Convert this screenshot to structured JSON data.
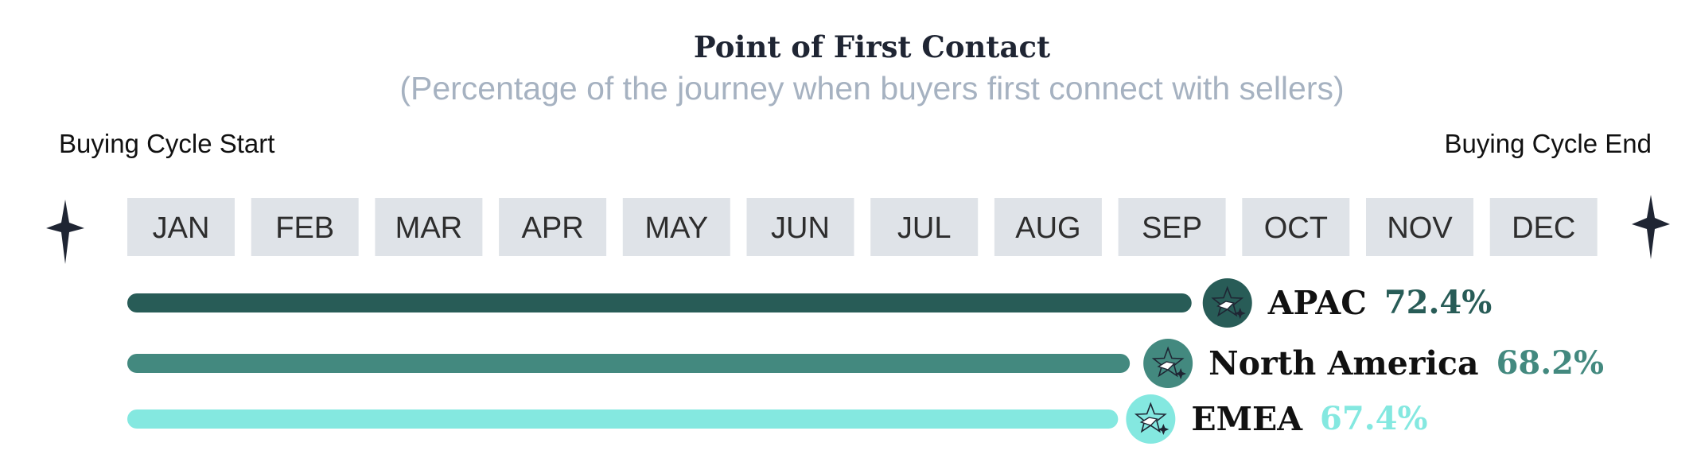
{
  "chart_data": {
    "type": "bar",
    "orientation": "horizontal",
    "title": "Point of First Contact",
    "subtitle": "(Percentage of the journey when buyers first connect with sellers)",
    "start_label": "Buying Cycle Start",
    "end_label": "Buying Cycle End",
    "months": [
      "JAN",
      "FEB",
      "MAR",
      "APR",
      "MAY",
      "JUN",
      "JUL",
      "AUG",
      "SEP",
      "OCT",
      "NOV",
      "DEC"
    ],
    "xlim": [
      0,
      100
    ],
    "series": [
      {
        "name": "APAC",
        "value": 72.4,
        "value_label": "72.4%",
        "color": "#285c57"
      },
      {
        "name": "North America",
        "value": 68.2,
        "value_label": "68.2%",
        "color": "#43897f"
      },
      {
        "name": "EMEA",
        "value": 67.4,
        "value_label": "67.4%",
        "color": "#84e8e0"
      }
    ]
  },
  "colors": {
    "month_box": "#dfe3e8",
    "sparkle": "#1f2533",
    "icon_line": "#1f2533"
  },
  "icons": {
    "sparkle": "sparkle-icon",
    "marker": "star-plane-icon"
  }
}
